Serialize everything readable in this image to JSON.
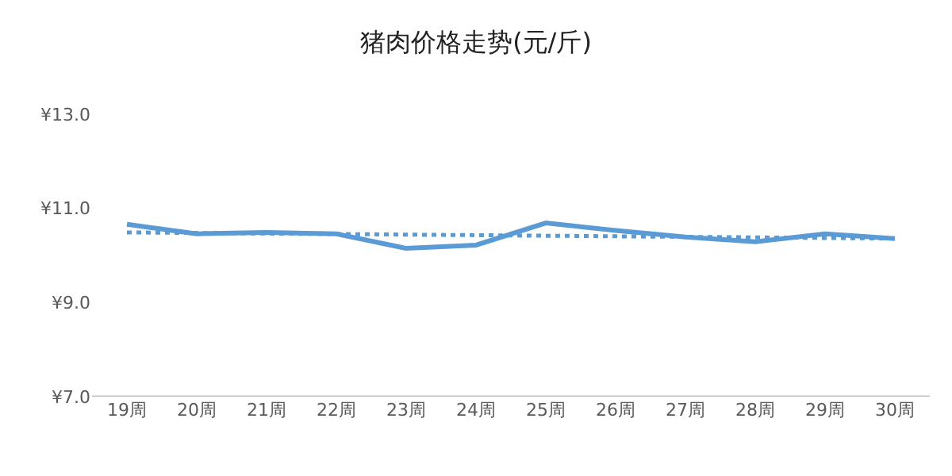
{
  "chart_data": {
    "type": "line",
    "title": "猪肉价格走势(元/斤)",
    "categories": [
      "19周",
      "20周",
      "21周",
      "22周",
      "23周",
      "24周",
      "25周",
      "26周",
      "27周",
      "28周",
      "29周",
      "30周"
    ],
    "series": [
      {
        "color": "#5b9bd5",
        "values": [
          10.66,
          10.46,
          10.49,
          10.46,
          10.15,
          10.22,
          10.69,
          10.53,
          10.39,
          10.29,
          10.46,
          10.36
        ]
      },
      {
        "type": "line",
        "color": "#5b9bd5",
        "line_style": "dotted",
        "x": [
          "19周",
          "30周"
        ],
        "values": [
          10.49,
          10.36
        ]
      }
    ],
    "ylim": [
      7,
      13
    ],
    "yticks": [
      {
        "value": 7,
        "label": "¥7.0"
      },
      {
        "value": 9,
        "label": "¥9.0"
      },
      {
        "value": 11,
        "label": "¥11.0"
      },
      {
        "value": 13,
        "label": "¥13.0"
      }
    ],
    "marker": "none",
    "line_style": "solid"
  }
}
